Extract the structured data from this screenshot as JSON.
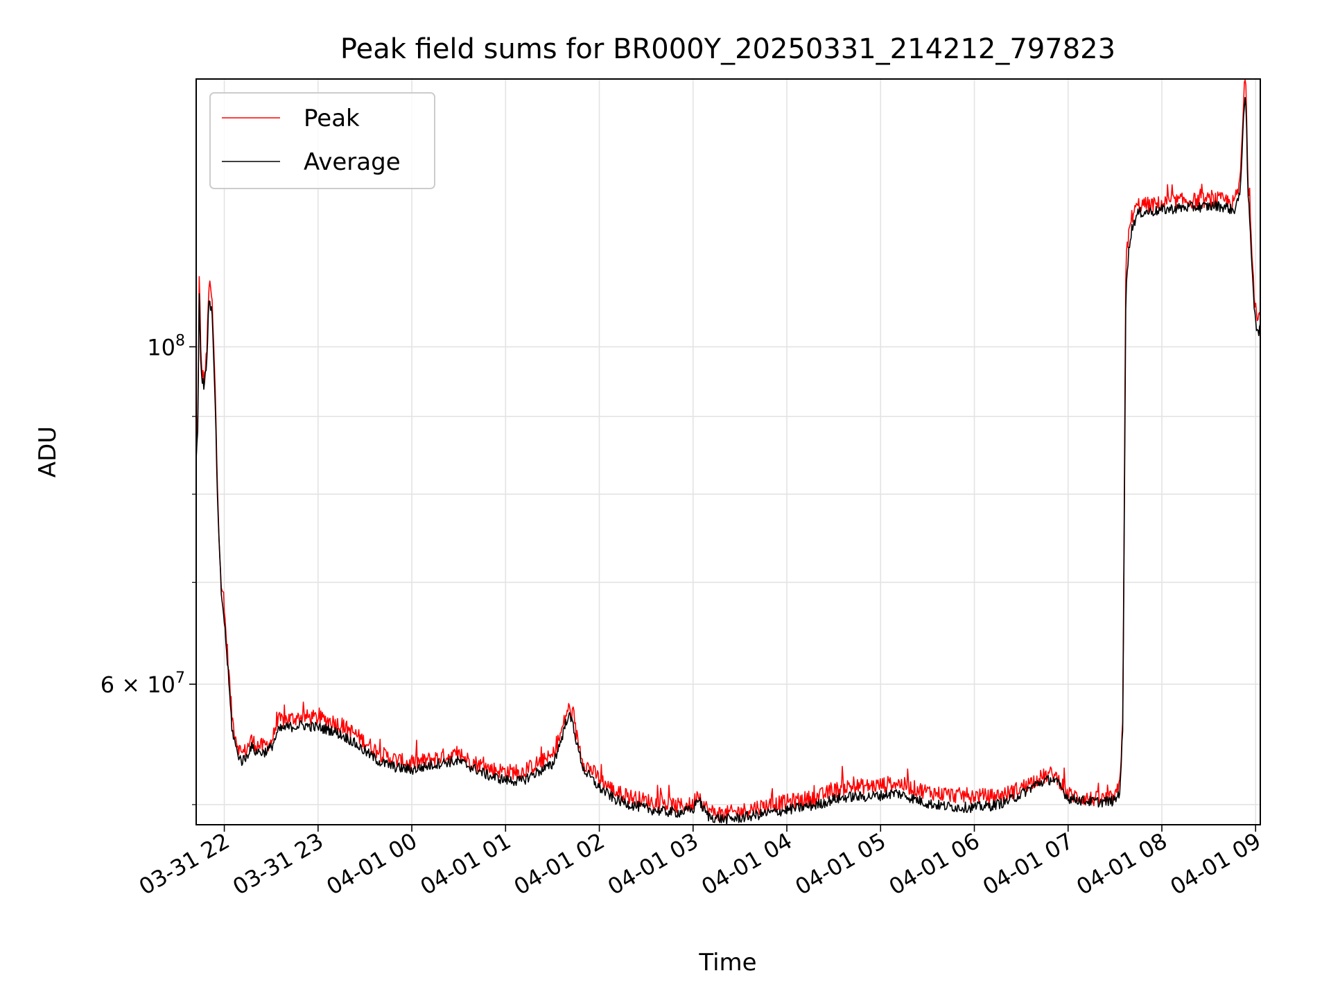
{
  "chart_data": {
    "type": "line",
    "title": "Peak field sums for BR000Y_20250331_214212_797823",
    "xlabel": "Time",
    "ylabel": "ADU",
    "yscale": "log",
    "grid": true,
    "legend_position": "upper-left",
    "x_ticks": [
      "03-31 22",
      "03-31 23",
      "04-01 00",
      "04-01 01",
      "04-01 02",
      "04-01 03",
      "04-01 04",
      "04-01 05",
      "04-01 06",
      "04-01 07",
      "04-01 08",
      "04-01 09"
    ],
    "y_ticks": [
      {
        "value": 100000000,
        "label_base": "10",
        "label_exp": "8"
      },
      {
        "value": 60000000,
        "label_base": "6 × 10",
        "label_exp": "7"
      }
    ],
    "xlim": [
      "2025-03-31 21:42",
      "2025-04-01 09:03"
    ],
    "ylim": [
      48500000,
      150000000
    ],
    "series": [
      {
        "name": "Peak",
        "color": "#ff0000",
        "points": [
          [
            "2025-03-31 21:42",
            86000000
          ],
          [
            "2025-03-31 21:43",
            90000000
          ],
          [
            "2025-03-31 21:44",
            112000000
          ],
          [
            "2025-03-31 21:45",
            98000000
          ],
          [
            "2025-03-31 21:46",
            96000000
          ],
          [
            "2025-03-31 21:47",
            95000000
          ],
          [
            "2025-03-31 21:48",
            97000000
          ],
          [
            "2025-03-31 21:49",
            100000000
          ],
          [
            "2025-03-31 21:50",
            110000000
          ],
          [
            "2025-03-31 21:52",
            108000000
          ],
          [
            "2025-03-31 21:54",
            95000000
          ],
          [
            "2025-03-31 21:56",
            78000000
          ],
          [
            "2025-03-31 21:58",
            70000000
          ],
          [
            "2025-03-31 22:00",
            67000000
          ],
          [
            "2025-03-31 22:02",
            63000000
          ],
          [
            "2025-03-31 22:05",
            57000000
          ],
          [
            "2025-03-31 22:08",
            55000000
          ],
          [
            "2025-03-31 22:11",
            54000000
          ],
          [
            "2025-03-31 22:14",
            54300000
          ],
          [
            "2025-03-31 22:17",
            55200000
          ],
          [
            "2025-03-31 22:20",
            54800000
          ],
          [
            "2025-03-31 22:25",
            54600000
          ],
          [
            "2025-03-31 22:30",
            55000000
          ],
          [
            "2025-03-31 22:35",
            56800000
          ],
          [
            "2025-03-31 22:40",
            56900000
          ],
          [
            "2025-03-31 22:50",
            57100000
          ],
          [
            "2025-03-31 23:00",
            57000000
          ],
          [
            "2025-03-31 23:10",
            56700000
          ],
          [
            "2025-03-31 23:20",
            56000000
          ],
          [
            "2025-03-31 23:30",
            55000000
          ],
          [
            "2025-03-31 23:40",
            54000000
          ],
          [
            "2025-03-31 23:50",
            53500000
          ],
          [
            "2025-04-01 00:00",
            53200000
          ],
          [
            "2025-04-01 00:10",
            53500000
          ],
          [
            "2025-04-01 00:20",
            53800000
          ],
          [
            "2025-04-01 00:30",
            53900000
          ],
          [
            "2025-04-01 00:40",
            53300000
          ],
          [
            "2025-04-01 00:50",
            52800000
          ],
          [
            "2025-04-01 01:00",
            52600000
          ],
          [
            "2025-04-01 01:10",
            52500000
          ],
          [
            "2025-04-01 01:20",
            53200000
          ],
          [
            "2025-04-01 01:30",
            53800000
          ],
          [
            "2025-04-01 01:35",
            55500000
          ],
          [
            "2025-04-01 01:40",
            57900000
          ],
          [
            "2025-04-01 01:43",
            57200000
          ],
          [
            "2025-04-01 01:46",
            55200000
          ],
          [
            "2025-04-01 01:50",
            53300000
          ],
          [
            "2025-04-01 01:55",
            52700000
          ],
          [
            "2025-04-01 02:00",
            52000000
          ],
          [
            "2025-04-01 02:10",
            51000000
          ],
          [
            "2025-04-01 02:20",
            50600000
          ],
          [
            "2025-04-01 02:30",
            50300000
          ],
          [
            "2025-04-01 02:40",
            50100000
          ],
          [
            "2025-04-01 02:50",
            49900000
          ],
          [
            "2025-04-01 03:00",
            50000000
          ],
          [
            "2025-04-01 03:03",
            51000000
          ],
          [
            "2025-04-01 03:06",
            50200000
          ],
          [
            "2025-04-01 03:10",
            49500000
          ],
          [
            "2025-04-01 03:20",
            49300000
          ],
          [
            "2025-04-01 03:30",
            49500000
          ],
          [
            "2025-04-01 03:40",
            49800000
          ],
          [
            "2025-04-01 03:50",
            50000000
          ],
          [
            "2025-04-01 04:00",
            50200000
          ],
          [
            "2025-04-01 04:10",
            50400000
          ],
          [
            "2025-04-01 04:20",
            50600000
          ],
          [
            "2025-04-01 04:30",
            51100000
          ],
          [
            "2025-04-01 04:40",
            51400000
          ],
          [
            "2025-04-01 04:50",
            51400000
          ],
          [
            "2025-04-01 05:00",
            51500000
          ],
          [
            "2025-04-01 05:10",
            51700000
          ],
          [
            "2025-04-01 05:20",
            51300000
          ],
          [
            "2025-04-01 05:30",
            51000000
          ],
          [
            "2025-04-01 05:40",
            50800000
          ],
          [
            "2025-04-01 05:50",
            50700000
          ],
          [
            "2025-04-01 06:00",
            50700000
          ],
          [
            "2025-04-01 06:10",
            50600000
          ],
          [
            "2025-04-01 06:20",
            50800000
          ],
          [
            "2025-04-01 06:30",
            51300000
          ],
          [
            "2025-04-01 06:40",
            52000000
          ],
          [
            "2025-04-01 06:50",
            52400000
          ],
          [
            "2025-04-01 06:55",
            51800000
          ],
          [
            "2025-04-01 07:00",
            50800000
          ],
          [
            "2025-04-01 07:10",
            50500000
          ],
          [
            "2025-04-01 07:20",
            50400000
          ],
          [
            "2025-04-01 07:30",
            50500000
          ],
          [
            "2025-04-01 07:33",
            51500000
          ],
          [
            "2025-04-01 07:35",
            57000000
          ],
          [
            "2025-04-01 07:36",
            80000000
          ],
          [
            "2025-04-01 07:37",
            114000000
          ],
          [
            "2025-04-01 07:39",
            119000000
          ],
          [
            "2025-04-01 07:41",
            122000000
          ],
          [
            "2025-04-01 07:45",
            124000000
          ],
          [
            "2025-04-01 07:55",
            124000000
          ],
          [
            "2025-04-01 08:05",
            124500000
          ],
          [
            "2025-04-01 08:15",
            124800000
          ],
          [
            "2025-04-01 08:25",
            124800000
          ],
          [
            "2025-04-01 08:35",
            125000000
          ],
          [
            "2025-04-01 08:42",
            124700000
          ],
          [
            "2025-04-01 08:46",
            124300000
          ],
          [
            "2025-04-01 08:48",
            126000000
          ],
          [
            "2025-04-01 08:50",
            128000000
          ],
          [
            "2025-04-01 08:52",
            142000000
          ],
          [
            "2025-04-01 08:53",
            150000000
          ],
          [
            "2025-04-01 08:54",
            146000000
          ],
          [
            "2025-04-01 08:55",
            130000000
          ],
          [
            "2025-04-01 08:57",
            120000000
          ],
          [
            "2025-04-01 08:59",
            109000000
          ],
          [
            "2025-04-01 09:01",
            104000000
          ],
          [
            "2025-04-01 09:03",
            105000000
          ]
        ]
      },
      {
        "name": "Average",
        "color": "#000000",
        "points": [
          [
            "2025-03-31 21:42",
            85000000
          ],
          [
            "2025-03-31 21:43",
            88000000
          ],
          [
            "2025-03-31 21:44",
            109000000
          ],
          [
            "2025-03-31 21:45",
            97000000
          ],
          [
            "2025-03-31 21:46",
            95000000
          ],
          [
            "2025-03-31 21:47",
            94000000
          ],
          [
            "2025-03-31 21:48",
            96000000
          ],
          [
            "2025-03-31 21:49",
            99000000
          ],
          [
            "2025-03-31 21:50",
            107000000
          ],
          [
            "2025-03-31 21:52",
            106000000
          ],
          [
            "2025-03-31 21:54",
            93000000
          ],
          [
            "2025-03-31 21:56",
            77000000
          ],
          [
            "2025-03-31 21:58",
            69000000
          ],
          [
            "2025-03-31 22:00",
            66000000
          ],
          [
            "2025-03-31 22:02",
            62000000
          ],
          [
            "2025-03-31 22:05",
            56000000
          ],
          [
            "2025-03-31 22:08",
            54200000
          ],
          [
            "2025-03-31 22:11",
            53400000
          ],
          [
            "2025-03-31 22:14",
            53700000
          ],
          [
            "2025-03-31 22:17",
            54600000
          ],
          [
            "2025-03-31 22:20",
            54200000
          ],
          [
            "2025-03-31 22:25",
            54100000
          ],
          [
            "2025-03-31 22:30",
            54500000
          ],
          [
            "2025-03-31 22:35",
            56000000
          ],
          [
            "2025-03-31 22:40",
            56200000
          ],
          [
            "2025-03-31 22:50",
            56400000
          ],
          [
            "2025-03-31 23:00",
            56200000
          ],
          [
            "2025-03-31 23:10",
            55900000
          ],
          [
            "2025-03-31 23:20",
            55200000
          ],
          [
            "2025-03-31 23:30",
            54200000
          ],
          [
            "2025-03-31 23:40",
            53300000
          ],
          [
            "2025-03-31 23:50",
            52900000
          ],
          [
            "2025-04-01 00:00",
            52700000
          ],
          [
            "2025-04-01 00:10",
            53000000
          ],
          [
            "2025-04-01 00:20",
            53300000
          ],
          [
            "2025-04-01 00:30",
            53400000
          ],
          [
            "2025-04-01 00:40",
            52800000
          ],
          [
            "2025-04-01 00:50",
            52200000
          ],
          [
            "2025-04-01 01:00",
            51900000
          ],
          [
            "2025-04-01 01:10",
            51800000
          ],
          [
            "2025-04-01 01:20",
            52500000
          ],
          [
            "2025-04-01 01:30",
            53100000
          ],
          [
            "2025-04-01 01:35",
            54900000
          ],
          [
            "2025-04-01 01:40",
            57300000
          ],
          [
            "2025-04-01 01:43",
            56600000
          ],
          [
            "2025-04-01 01:46",
            54600000
          ],
          [
            "2025-04-01 01:50",
            52700000
          ],
          [
            "2025-04-01 01:55",
            52000000
          ],
          [
            "2025-04-01 02:00",
            51300000
          ],
          [
            "2025-04-01 02:10",
            50400000
          ],
          [
            "2025-04-01 02:20",
            50000000
          ],
          [
            "2025-04-01 02:30",
            49700000
          ],
          [
            "2025-04-01 02:40",
            49500000
          ],
          [
            "2025-04-01 02:50",
            49400000
          ],
          [
            "2025-04-01 03:00",
            49600000
          ],
          [
            "2025-04-01 03:03",
            50500000
          ],
          [
            "2025-04-01 03:06",
            49800000
          ],
          [
            "2025-04-01 03:10",
            49100000
          ],
          [
            "2025-04-01 03:20",
            48900000
          ],
          [
            "2025-04-01 03:30",
            49000000
          ],
          [
            "2025-04-01 03:40",
            49200000
          ],
          [
            "2025-04-01 03:50",
            49400000
          ],
          [
            "2025-04-01 04:00",
            49600000
          ],
          [
            "2025-04-01 04:10",
            49800000
          ],
          [
            "2025-04-01 04:20",
            50000000
          ],
          [
            "2025-04-01 04:30",
            50400000
          ],
          [
            "2025-04-01 04:40",
            50600000
          ],
          [
            "2025-04-01 04:50",
            50600000
          ],
          [
            "2025-04-01 05:00",
            50700000
          ],
          [
            "2025-04-01 05:10",
            50900000
          ],
          [
            "2025-04-01 05:20",
            50500000
          ],
          [
            "2025-04-01 05:30",
            50100000
          ],
          [
            "2025-04-01 05:40",
            49900000
          ],
          [
            "2025-04-01 05:50",
            49800000
          ],
          [
            "2025-04-01 06:00",
            49800000
          ],
          [
            "2025-04-01 06:10",
            49900000
          ],
          [
            "2025-04-01 06:20",
            50200000
          ],
          [
            "2025-04-01 06:30",
            50800000
          ],
          [
            "2025-04-01 06:40",
            51600000
          ],
          [
            "2025-04-01 06:50",
            52000000
          ],
          [
            "2025-04-01 06:55",
            51400000
          ],
          [
            "2025-04-01 07:00",
            50500000
          ],
          [
            "2025-04-01 07:10",
            50300000
          ],
          [
            "2025-04-01 07:20",
            50200000
          ],
          [
            "2025-04-01 07:30",
            50300000
          ],
          [
            "2025-04-01 07:33",
            51000000
          ],
          [
            "2025-04-01 07:35",
            56000000
          ],
          [
            "2025-04-01 07:36",
            77000000
          ],
          [
            "2025-04-01 07:37",
            110000000
          ],
          [
            "2025-04-01 07:39",
            116000000
          ],
          [
            "2025-04-01 07:41",
            120000000
          ],
          [
            "2025-04-01 07:45",
            122500000
          ],
          [
            "2025-04-01 07:55",
            122800000
          ],
          [
            "2025-04-01 08:05",
            123200000
          ],
          [
            "2025-04-01 08:15",
            123500000
          ],
          [
            "2025-04-01 08:25",
            123600000
          ],
          [
            "2025-04-01 08:35",
            123800000
          ],
          [
            "2025-04-01 08:42",
            123500000
          ],
          [
            "2025-04-01 08:46",
            122800000
          ],
          [
            "2025-04-01 08:48",
            124500000
          ],
          [
            "2025-04-01 08:50",
            125500000
          ],
          [
            "2025-04-01 08:52",
            140000000
          ],
          [
            "2025-04-01 08:53",
            146000000
          ],
          [
            "2025-04-01 08:54",
            142000000
          ],
          [
            "2025-04-01 08:55",
            127000000
          ],
          [
            "2025-04-01 08:57",
            117000000
          ],
          [
            "2025-04-01 08:59",
            107000000
          ],
          [
            "2025-04-01 09:01",
            102000000
          ],
          [
            "2025-04-01 09:03",
            103000000
          ]
        ]
      }
    ]
  }
}
